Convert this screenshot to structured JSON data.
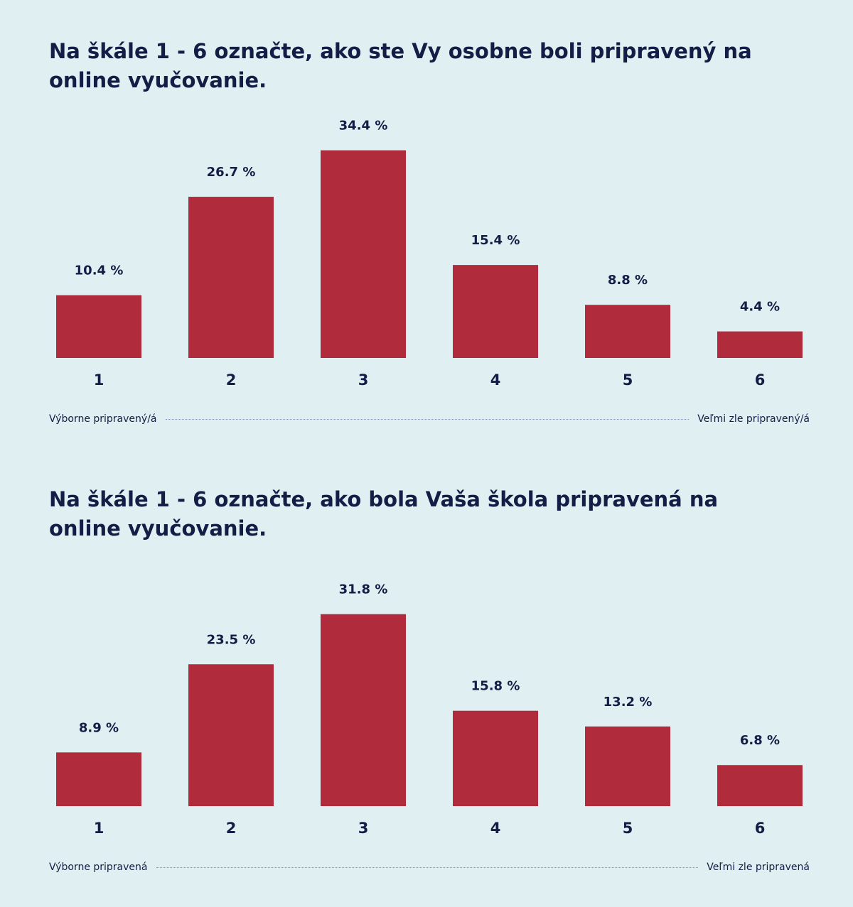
{
  "colors": {
    "background": "#e0eff2",
    "bar": "#b02c3c",
    "text": "#141d45"
  },
  "chart_data": [
    {
      "type": "bar",
      "title": "Na škále 1 - 6 označte, ako ste Vy osobne boli pripravený na online vyučovanie.",
      "categories": [
        "1",
        "2",
        "3",
        "4",
        "5",
        "6"
      ],
      "values": [
        10.4,
        26.7,
        34.4,
        15.4,
        8.8,
        4.4
      ],
      "value_labels": [
        "10.4 %",
        "26.7 %",
        "34.4 %",
        "15.4 %",
        "8.8 %",
        "4.4 %"
      ],
      "scale_left": "Výborne pripravený/á",
      "scale_right": "Veľmi zle pripravený/á",
      "grid": false
    },
    {
      "type": "bar",
      "title": "Na škále 1 - 6 označte, ako bola Vaša škola pripravená na online vyučovanie.",
      "categories": [
        "1",
        "2",
        "3",
        "4",
        "5",
        "6"
      ],
      "values": [
        8.9,
        23.5,
        31.8,
        15.8,
        13.2,
        6.8
      ],
      "value_labels": [
        "8.9 %",
        "23.5 %",
        "31.8 %",
        "15.8 %",
        "13.2 %",
        "6.8 %"
      ],
      "scale_left": "Výborne pripravená",
      "scale_right": "Veľmi zle pripravená",
      "grid": false
    }
  ]
}
